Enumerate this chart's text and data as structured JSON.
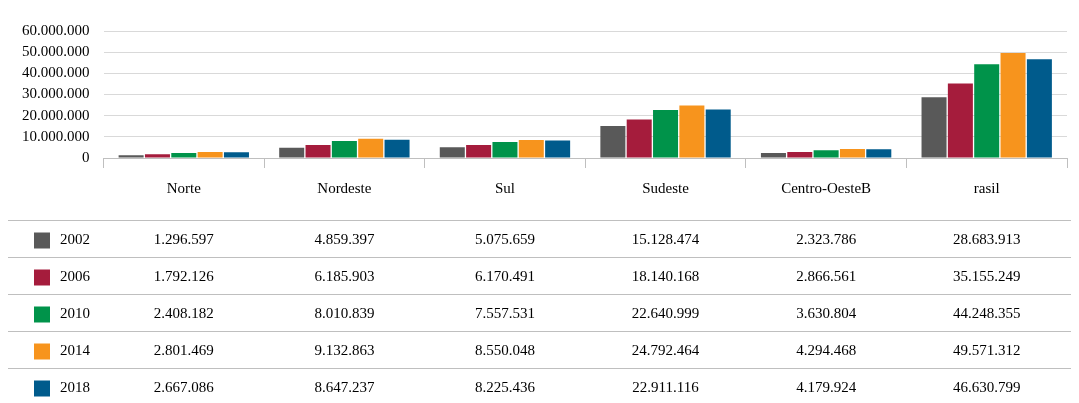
{
  "chart_data": {
    "type": "bar",
    "categories": [
      "Norte",
      "Nordeste",
      "Sul",
      "Sudeste",
      "Centro-OesteB",
      "rasil"
    ],
    "series": [
      {
        "name": "2002",
        "color": "#595959",
        "values": [
          1296597,
          4859397,
          5075659,
          15128474,
          2323786,
          28683913
        ],
        "value_labels": [
          "1.296.597",
          "4.859.397",
          "5.075.659",
          "15.128.474",
          "2.323.786",
          "28.683.913"
        ]
      },
      {
        "name": "2006",
        "color": "#a51c3c",
        "values": [
          1792126,
          6185903,
          6170491,
          18140168,
          2866561,
          35155249
        ],
        "value_labels": [
          "1.792.126",
          "6.185.903",
          "6.170.491",
          "18.140.168",
          "2.866.561",
          "35.155.249"
        ]
      },
      {
        "name": "2010",
        "color": "#00934a",
        "values": [
          2408182,
          8010839,
          7557531,
          22640999,
          3630804,
          44248355
        ],
        "value_labels": [
          "2.408.182",
          "8.010.839",
          "7.557.531",
          "22.640.999",
          "3.630.804",
          "44.248.355"
        ]
      },
      {
        "name": "2014",
        "color": "#f7941d",
        "values": [
          2801469,
          9132863,
          8550048,
          24792464,
          4294468,
          49571312
        ],
        "value_labels": [
          "2.801.469",
          "9.132.863",
          "8.550.048",
          "24.792.464",
          "4.294.468",
          "49.571.312"
        ]
      },
      {
        "name": "2018",
        "color": "#005b8c",
        "values": [
          2667086,
          8647237,
          8225436,
          22911116,
          4179924,
          46630799
        ],
        "value_labels": [
          "2.667.086",
          "8.647.237",
          "8.225.436",
          "22.911.116",
          "4.179.924",
          "46.630.799"
        ]
      }
    ],
    "ylim": [
      0,
      60000000
    ],
    "yticks": [
      {
        "value": 0,
        "label": "0"
      },
      {
        "value": 10000000,
        "label": "10.000.000"
      },
      {
        "value": 20000000,
        "label": "20.000.000"
      },
      {
        "value": 30000000,
        "label": "30.000.000"
      },
      {
        "value": 40000000,
        "label": "40.000.000"
      },
      {
        "value": 50000000,
        "label": "50.000.000"
      },
      {
        "value": 60000000,
        "label": "60.000.000"
      }
    ],
    "grid": "y",
    "legend": "bottom"
  }
}
